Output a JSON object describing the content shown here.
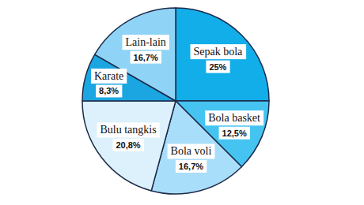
{
  "chart_data": {
    "type": "pie",
    "categories": [
      "Sepak bola",
      "Bola basket",
      "Bola voli",
      "Bulu tangkis",
      "Karate",
      "Lain-lain"
    ],
    "values": [
      25,
      12.5,
      16.7,
      20.8,
      8.3,
      16.7
    ],
    "value_labels": [
      "25%",
      "12,5%",
      "16,7%",
      "20,8%",
      "8,3%",
      "16,7%"
    ],
    "colors": [
      "#12aeea",
      "#45c4f2",
      "#a9defa",
      "#dcf1fb",
      "#1ba6e2",
      "#8fd4f6"
    ],
    "data_labels": true
  }
}
